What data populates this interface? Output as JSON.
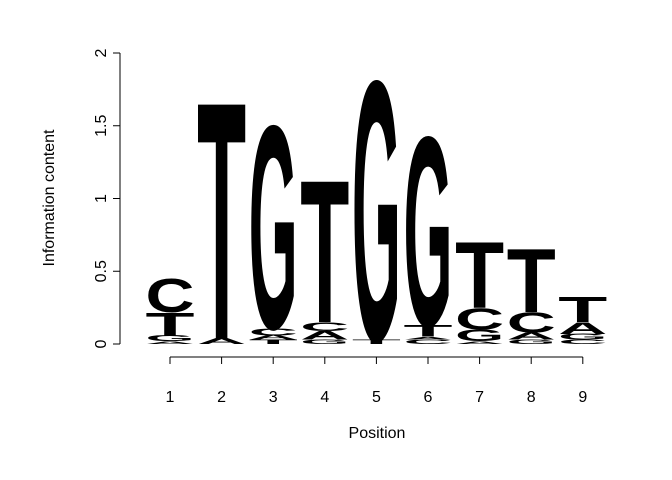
{
  "chart_data": {
    "type": "logo",
    "x_label": "Position",
    "y_label": "Information content",
    "categories": [
      "1",
      "2",
      "3",
      "4",
      "5",
      "6",
      "7",
      "8",
      "9"
    ],
    "colors": {
      "A": "#5bc04a",
      "C": "#2a8ee0",
      "G": "#f1b911",
      "T": "#d93b5f"
    },
    "stacks": [
      [
        {
          "letter": "A",
          "value": 0.02
        },
        {
          "letter": "G",
          "value": 0.04
        },
        {
          "letter": "T",
          "value": 0.16
        },
        {
          "letter": "C",
          "value": 0.24
        }
      ],
      [
        {
          "letter": "A",
          "value": 0.04
        },
        {
          "letter": "T",
          "value": 1.68
        }
      ],
      [
        {
          "letter": "T",
          "value": 0.03
        },
        {
          "letter": "A",
          "value": 0.03
        },
        {
          "letter": "C",
          "value": 0.05
        },
        {
          "letter": "G",
          "value": 1.44
        }
      ],
      [
        {
          "letter": "G",
          "value": 0.03
        },
        {
          "letter": "A",
          "value": 0.06
        },
        {
          "letter": "C",
          "value": 0.06
        },
        {
          "letter": "T",
          "value": 1.01
        }
      ],
      [
        {
          "letter": "T",
          "value": 0.03
        },
        {
          "letter": "G",
          "value": 1.84
        }
      ],
      [
        {
          "letter": "C",
          "value": 0.03
        },
        {
          "letter": "A",
          "value": 0.02
        },
        {
          "letter": "T",
          "value": 0.08
        },
        {
          "letter": "G",
          "value": 1.34
        }
      ],
      [
        {
          "letter": "A",
          "value": 0.02
        },
        {
          "letter": "G",
          "value": 0.08
        },
        {
          "letter": "C",
          "value": 0.15
        },
        {
          "letter": "T",
          "value": 0.47
        }
      ],
      [
        {
          "letter": "G",
          "value": 0.03
        },
        {
          "letter": "A",
          "value": 0.05
        },
        {
          "letter": "C",
          "value": 0.14
        },
        {
          "letter": "T",
          "value": 0.45
        }
      ],
      [
        {
          "letter": "C",
          "value": 0.03
        },
        {
          "letter": "G",
          "value": 0.04
        },
        {
          "letter": "A",
          "value": 0.08
        },
        {
          "letter": "T",
          "value": 0.18
        }
      ]
    ],
    "ylim": [
      0,
      2
    ],
    "yticks": [
      0,
      0.5,
      1,
      1.5,
      2
    ]
  }
}
